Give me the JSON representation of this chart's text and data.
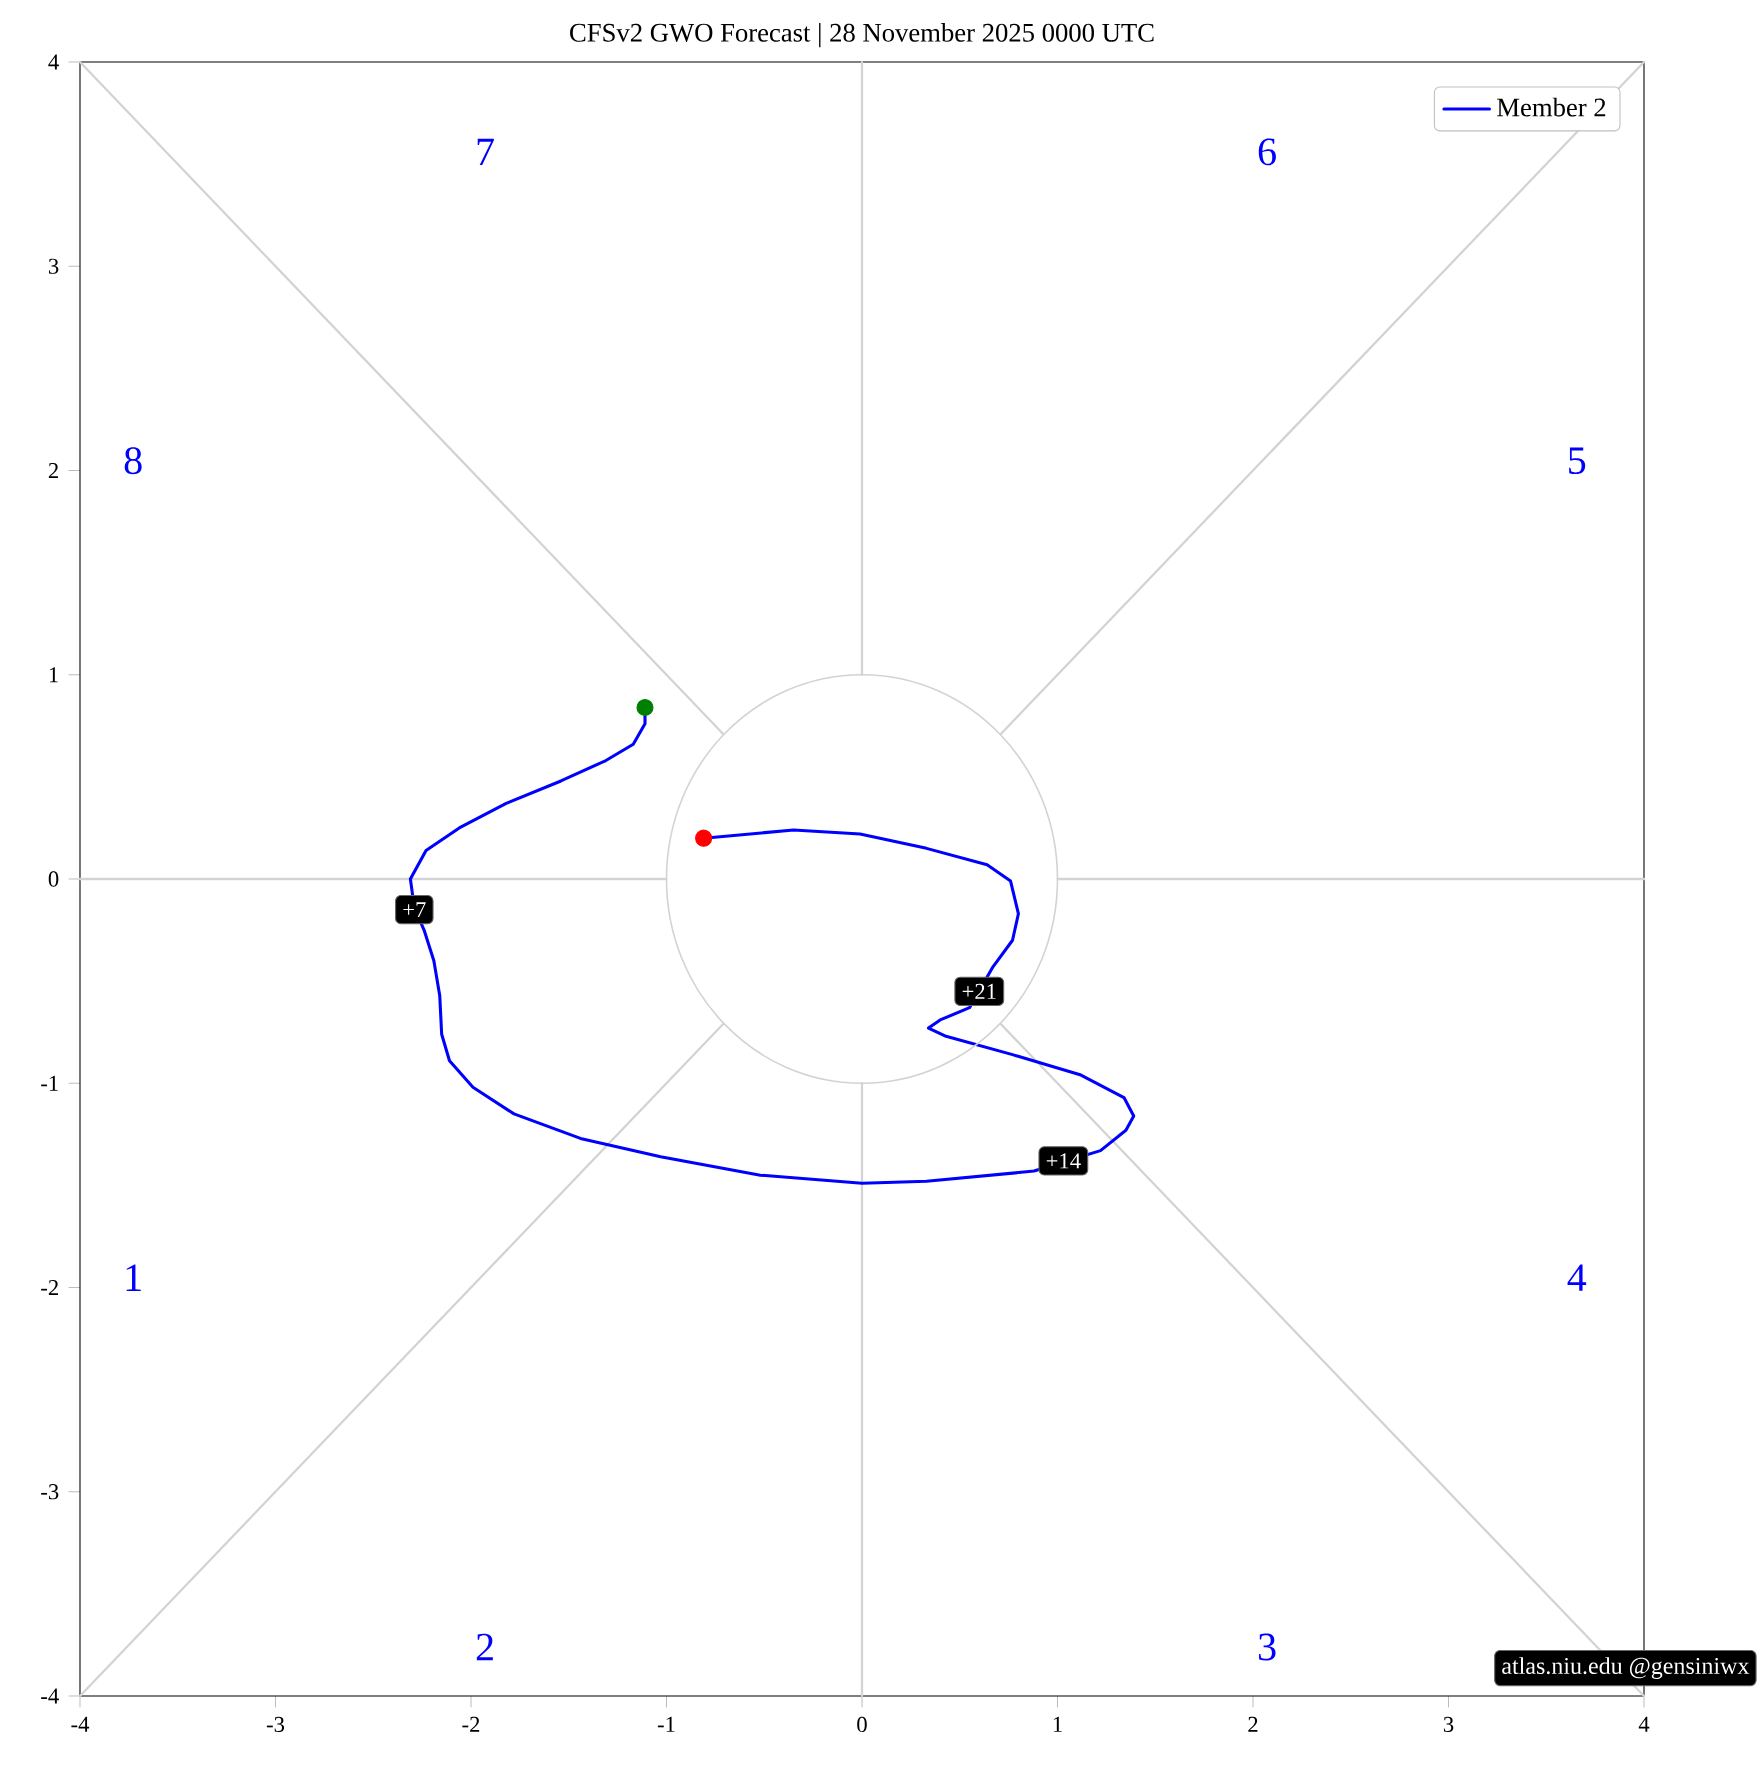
{
  "chart_data": {
    "type": "line",
    "title": "CFSv2 GWO Forecast   |   28  November  2025 0000 UTC",
    "xlim": [
      -4,
      4
    ],
    "ylim": [
      -4,
      4
    ],
    "xticks": [
      -4,
      -3,
      -2,
      -1,
      0,
      1,
      2,
      3,
      4
    ],
    "yticks": [
      -4,
      -3,
      -2,
      -1,
      0,
      1,
      2,
      3,
      4
    ],
    "grid": false,
    "legend": "top right",
    "series": [
      {
        "color": "#d3d3d3",
        "x": [
          -4,
          -0.71
        ],
        "values": [
          -4,
          -0.71
        ]
      },
      {
        "color": "#d3d3d3",
        "x": [
          0,
          0
        ],
        "values": [
          -4,
          -1
        ]
      },
      {
        "color": "#d3d3d3",
        "x": [
          4,
          0.71
        ],
        "values": [
          -4,
          -0.71
        ]
      },
      {
        "color": "#d3d3d3",
        "x": [
          4,
          1
        ],
        "values": [
          0,
          0
        ]
      },
      {
        "color": "#d3d3d3",
        "x": [
          4,
          0.71
        ],
        "values": [
          4,
          0.71
        ]
      },
      {
        "color": "#d3d3d3",
        "x": [
          0,
          0
        ],
        "values": [
          4,
          1
        ]
      },
      {
        "color": "#d3d3d3",
        "x": [
          -4,
          -0.71
        ],
        "values": [
          4,
          0.71
        ]
      },
      {
        "color": "#d3d3d3",
        "x": [
          -4,
          -1
        ],
        "values": [
          0,
          0
        ]
      },
      {
        "name": "Member 2",
        "color": "#0000ff",
        "x": [
          -1.11,
          -1.11,
          -1.17,
          -1.31,
          -1.54,
          -1.82,
          -2.06,
          -2.23,
          -2.31,
          -2.29,
          -2.24,
          -2.19,
          -2.16,
          -2.15,
          -2.11,
          -1.99,
          -1.78,
          -1.44,
          -1.03,
          -0.52,
          0.0,
          0.33,
          0.88,
          1.22,
          1.35,
          1.39,
          1.34,
          1.12,
          0.77,
          0.43,
          0.34,
          0.4,
          0.55,
          0.67,
          0.77,
          0.8,
          0.76,
          0.64,
          0.33,
          -0.01,
          -0.35,
          -0.81
        ],
        "values": [
          0.84,
          0.76,
          0.66,
          0.58,
          0.48,
          0.37,
          0.25,
          0.14,
          0.0,
          -0.14,
          -0.25,
          -0.4,
          -0.57,
          -0.76,
          -0.89,
          -1.02,
          -1.15,
          -1.27,
          -1.36,
          -1.45,
          -1.49,
          -1.48,
          -1.43,
          -1.33,
          -1.23,
          -1.16,
          -1.07,
          -0.96,
          -0.86,
          -0.77,
          -0.73,
          -0.69,
          -0.63,
          -0.43,
          -0.3,
          -0.17,
          -0.01,
          0.07,
          0.15,
          0.22,
          0.24,
          0.2
        ]
      },
      {
        "type": "scatter",
        "color": "#008000",
        "marker": "circle",
        "x": [
          -1.11
        ],
        "values": [
          0.84
        ]
      },
      {
        "type": "scatter",
        "color": "#ff0000",
        "marker": "circle",
        "x": [
          -0.81
        ],
        "values": [
          0.2
        ]
      }
    ],
    "annotations": [
      "1",
      "2",
      "3",
      "4",
      "5",
      "6",
      "7",
      "8",
      {
        "text": "+7",
        "x": -2.29,
        "y": -0.15
      },
      {
        "text": "+14",
        "x": 1.03,
        "y": -1.38
      },
      {
        "text": "+21",
        "x": 0.6,
        "y": -0.55
      },
      "atlas.niu.edu  @gensiniwx"
    ]
  }
}
